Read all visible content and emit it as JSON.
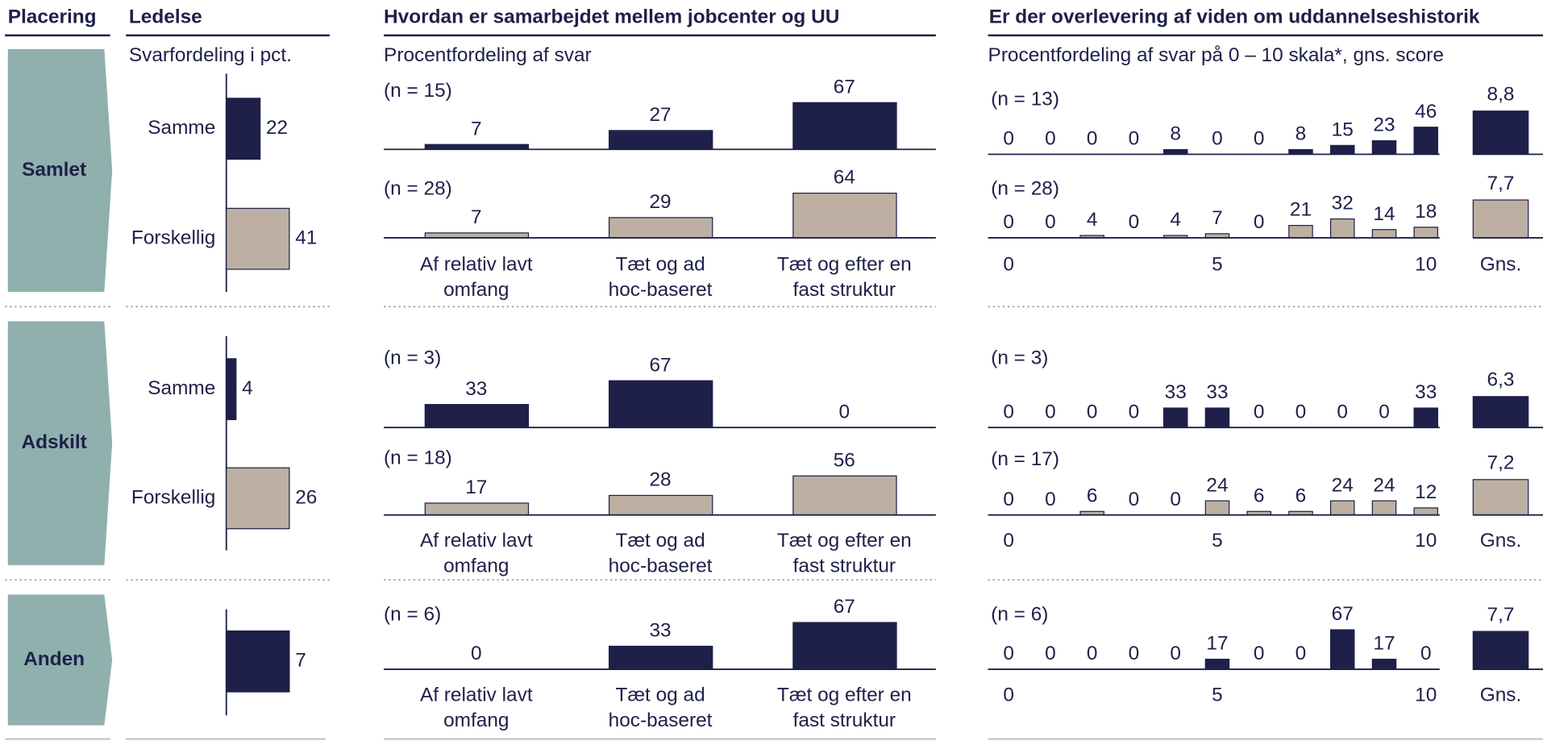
{
  "header": {
    "placering": "Placering"
  },
  "groups": [
    "Samlet",
    "Adskilt",
    "Anden"
  ],
  "chart_data": [
    {
      "type": "hbar",
      "title": "Ledelse",
      "subtitle": "Svarfordeling i pct.",
      "panels": [
        {
          "categories": [
            "Samme",
            "Forskellig"
          ],
          "values": [
            22,
            41
          ],
          "colors": [
            "#1e2049",
            "#bdb0a3"
          ]
        },
        {
          "categories": [
            "Samme",
            "Forskellig"
          ],
          "values": [
            4,
            26
          ],
          "colors": [
            "#1e2049",
            "#bdb0a3"
          ]
        },
        {
          "categories": [
            null
          ],
          "values": [
            7
          ],
          "colors": [
            "#1e2049"
          ]
        }
      ]
    },
    {
      "type": "bar",
      "title": "Hvordan er samarbejdet mellem jobcenter og UU",
      "subtitle": "Procentfordeling af svar",
      "categories": [
        [
          "Af relativ lavt",
          "omfang"
        ],
        [
          "Tæt og ad",
          "hoc-baseret"
        ],
        [
          "Tæt og efter en",
          "fast struktur"
        ]
      ],
      "panels": [
        {
          "series": [
            {
              "name": "(n = 15)",
              "color": "#1e2049",
              "values": [
                7,
                27,
                67
              ]
            },
            {
              "name": "(n = 28)",
              "color": "#bdb0a3",
              "values": [
                7,
                29,
                64
              ]
            }
          ]
        },
        {
          "series": [
            {
              "name": "(n = 3)",
              "color": "#1e2049",
              "values": [
                33,
                67,
                0
              ]
            },
            {
              "name": "(n = 18)",
              "color": "#bdb0a3",
              "values": [
                17,
                28,
                56
              ]
            }
          ]
        },
        {
          "series": [
            {
              "name": "(n = 6)",
              "color": "#1e2049",
              "values": [
                0,
                33,
                67
              ]
            }
          ]
        }
      ]
    },
    {
      "type": "scale",
      "title": "Er der overlevering af viden om uddannelseshistorik",
      "subtitle": "Procentfordeling af svar på 0 – 10 skala*, gns. score",
      "xticks": [
        0,
        5,
        10
      ],
      "mean_name": "Gns.",
      "panels": [
        {
          "series": [
            {
              "name": "(n = 13)",
              "color": "#1e2049",
              "values": [
                0,
                0,
                0,
                0,
                8,
                0,
                0,
                8,
                15,
                23,
                46
              ],
              "mean": 8.8,
              "mean_label": "8,8"
            },
            {
              "name": "(n = 28)",
              "color": "#bdb0a3",
              "values": [
                0,
                0,
                4,
                0,
                4,
                7,
                0,
                21,
                32,
                14,
                18
              ],
              "mean": 7.7,
              "mean_label": "7,7"
            }
          ]
        },
        {
          "series": [
            {
              "name": "(n = 3)",
              "color": "#1e2049",
              "values": [
                0,
                0,
                0,
                0,
                33,
                33,
                0,
                0,
                0,
                0,
                33
              ],
              "mean": 6.3,
              "mean_label": "6,3"
            },
            {
              "name": "(n = 17)",
              "color": "#bdb0a3",
              "values": [
                0,
                0,
                6,
                0,
                0,
                24,
                6,
                6,
                24,
                24,
                12
              ],
              "mean": 7.2,
              "mean_label": "7,2"
            }
          ]
        },
        {
          "series": [
            {
              "name": "(n = 6)",
              "color": "#1e2049",
              "values": [
                0,
                0,
                0,
                0,
                0,
                17,
                0,
                0,
                67,
                17,
                0
              ],
              "mean": 7.7,
              "mean_label": "7,7"
            }
          ]
        }
      ]
    }
  ]
}
